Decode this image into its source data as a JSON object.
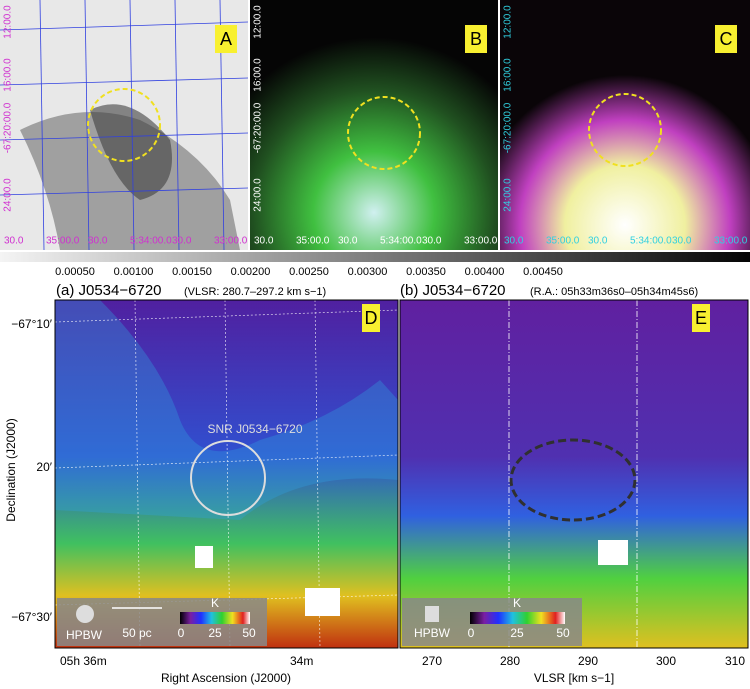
{
  "top_panels": [
    {
      "label": "A",
      "dec_labels": [
        "12:00.0",
        "16:00.0",
        "-67:20:00.0",
        "24:00.0"
      ],
      "ra_labels": [
        "30.0",
        "35:00.0",
        "30.0",
        "5:34:00.0",
        "30.0",
        "33:00.0"
      ]
    },
    {
      "label": "B",
      "dec_labels": [
        "12:00.0",
        "16:00.0",
        "-67:20:00.0",
        "24:00.0"
      ],
      "ra_labels": [
        "30.0",
        "35:00.0",
        "30.0",
        "5:34:00.0",
        "30.0",
        "33:00.0"
      ]
    },
    {
      "label": "C",
      "dec_labels": [
        "12:00.0",
        "16:00.0",
        "-67:20:00.0",
        "24:00.0"
      ],
      "ra_labels": [
        "30.0",
        "35:00.0",
        "30.0",
        "5:34:00.0",
        "30.0",
        "33:00.0"
      ]
    }
  ],
  "colorbar_ticks": [
    "0.00050",
    "0.00100",
    "0.00150",
    "0.00200",
    "0.00250",
    "0.00300",
    "0.00350",
    "0.00400",
    "0.00450"
  ],
  "panel_d": {
    "title": "(a) J0534−6720",
    "subtitle": "(VLSR: 280.7–297.2 km s−1)",
    "label": "D",
    "annotation": "SNR J0534−6720",
    "y_ticks": [
      "−67°10′",
      "20′",
      "−67°30′"
    ],
    "x_ticks": [
      "05h 36m",
      "34m"
    ],
    "x_axis_label": "Right Ascension (J2000)",
    "y_axis_label": "Declination (J2000)",
    "beam_label": "HPBW",
    "scale_label": "50 pc",
    "cbar_unit": "K",
    "cbar_ticks": [
      "0",
      "25",
      "50"
    ]
  },
  "panel_e": {
    "title": "(b) J0534−6720",
    "subtitle": "(R.A.: 05h33m36s0–05h34m45s6)",
    "label": "E",
    "x_ticks": [
      "270",
      "280",
      "290",
      "300",
      "310"
    ],
    "x_axis_label": "VLSR [km s−1]",
    "beam_label": "HPBW",
    "cbar_unit": "K",
    "cbar_ticks": [
      "0",
      "25",
      "50"
    ]
  }
}
